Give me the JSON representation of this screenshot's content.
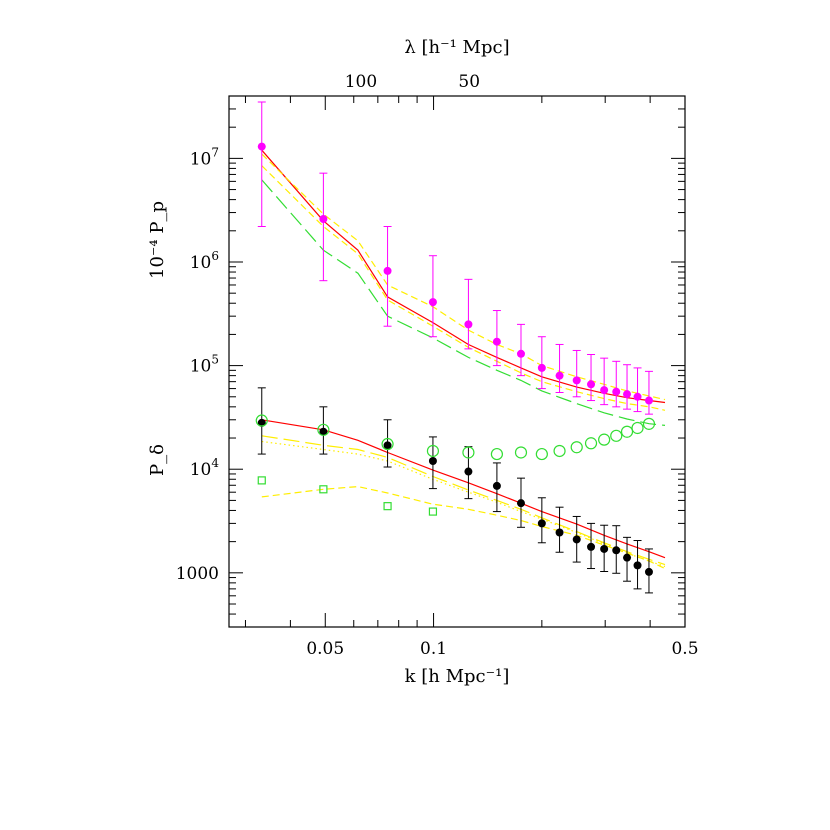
{
  "chart_data": {
    "type": "scatter",
    "x_scale": "log",
    "y_scale": "log",
    "xlim": [
      0.027,
      0.5
    ],
    "ylim": [
      300,
      40000000
    ],
    "xlabel": "k [h Mpc⁻¹]",
    "top_xlabel": "λ [h⁻¹ Mpc]",
    "ylabel_upper": "10⁻⁴ P_p",
    "ylabel_lower": "P_δ",
    "x_ticks": [
      {
        "value": 0.05,
        "label": "0.05"
      },
      {
        "value": 0.1,
        "label": "0.1"
      },
      {
        "value": 0.5,
        "label": "0.5"
      }
    ],
    "top_ticks": [
      {
        "lambda": 100,
        "label": "100"
      },
      {
        "lambda": 50,
        "label": "50"
      }
    ],
    "y_ticks": [
      {
        "value": 1000,
        "mantissa": "1000",
        "exponent": ""
      },
      {
        "value": 10000,
        "mantissa": "10",
        "exponent": "4"
      },
      {
        "value": 100000,
        "mantissa": "10",
        "exponent": "5"
      },
      {
        "value": 1000000,
        "mantissa": "10",
        "exponent": "6"
      },
      {
        "value": 10000000,
        "mantissa": "10",
        "exponent": "7"
      }
    ],
    "grid": false,
    "series": [
      {
        "kind": "points",
        "marker": "filled-circle",
        "color": "#ff00ff",
        "x": [
          0.0333,
          0.0494,
          0.0745,
          0.0996,
          0.125,
          0.15,
          0.175,
          0.2,
          0.224,
          0.25,
          0.274,
          0.298,
          0.322,
          0.345,
          0.369,
          0.397
        ],
        "y": [
          13000000,
          2600000,
          820000,
          410000,
          250000,
          170000,
          130000,
          95000,
          80000,
          72000,
          66000,
          58000,
          56000,
          53000,
          50000,
          46000
        ],
        "yerr_low": [
          2200000,
          660000,
          240000,
          190000,
          145000,
          100000,
          80000,
          60000,
          55000,
          50000,
          46000,
          42000,
          40000,
          38000,
          36000,
          34000
        ],
        "yerr_high": [
          35000000,
          7200000,
          2200000,
          1150000,
          680000,
          340000,
          250000,
          190000,
          160000,
          140000,
          128000,
          118000,
          110000,
          102000,
          95000,
          88000
        ]
      },
      {
        "kind": "points",
        "marker": "filled-circle",
        "color": "#000000",
        "x": [
          0.0333,
          0.0494,
          0.0745,
          0.0996,
          0.125,
          0.15,
          0.175,
          0.2,
          0.224,
          0.25,
          0.274,
          0.298,
          0.322,
          0.345,
          0.369,
          0.397
        ],
        "y": [
          28000,
          23000,
          17000,
          12000,
          9500,
          6900,
          4700,
          3000,
          2450,
          2100,
          1780,
          1700,
          1650,
          1400,
          1180,
          1020
        ],
        "yerr_low": [
          14000,
          14000,
          10500,
          6500,
          5200,
          3900,
          2750,
          1950,
          1580,
          1270,
          1100,
          1030,
          990,
          830,
          700,
          640
        ],
        "yerr_high": [
          61000,
          40000,
          30000,
          20500,
          16500,
          11500,
          8200,
          5300,
          4300,
          3500,
          3000,
          2880,
          2850,
          2200,
          2050,
          1700
        ]
      },
      {
        "kind": "points",
        "marker": "open-circle",
        "color": "#33dd33",
        "x": [
          0.0333,
          0.0494,
          0.0745,
          0.0996,
          0.125,
          0.15,
          0.175,
          0.2,
          0.224,
          0.25,
          0.274,
          0.298,
          0.322,
          0.345,
          0.369,
          0.397
        ],
        "y": [
          29500,
          24000,
          17500,
          15000,
          14500,
          14000,
          14500,
          14000,
          15000,
          16300,
          17800,
          19300,
          21000,
          23000,
          25000,
          27400
        ]
      },
      {
        "kind": "points",
        "marker": "open-square",
        "color": "#33dd33",
        "x": [
          0.0333,
          0.0494,
          0.0745,
          0.0996
        ],
        "y": [
          7800,
          6400,
          4400,
          3900
        ]
      },
      {
        "kind": "line",
        "style": "solid",
        "color": "#ff0000",
        "x": [
          0.0333,
          0.0494,
          0.0616,
          0.0745,
          0.0996,
          0.125,
          0.15,
          0.175,
          0.2,
          0.25,
          0.298,
          0.345,
          0.397,
          0.44
        ],
        "y": [
          12000000,
          2500000,
          1300000,
          460000,
          260000,
          160000,
          120000,
          95000,
          78000,
          62000,
          54000,
          49000,
          46000,
          44000
        ]
      },
      {
        "kind": "line",
        "style": "solid",
        "color": "#ff0000",
        "x": [
          0.0333,
          0.0494,
          0.0616,
          0.0745,
          0.0996,
          0.125,
          0.15,
          0.175,
          0.2,
          0.25,
          0.298,
          0.345,
          0.397,
          0.44
        ],
        "y": [
          30000,
          24000,
          19000,
          14500,
          9800,
          7400,
          5800,
          4700,
          3900,
          2950,
          2300,
          1900,
          1600,
          1400
        ]
      },
      {
        "kind": "line",
        "style": "dashed",
        "color": "#ffee00",
        "x": [
          0.0333,
          0.0494,
          0.0616,
          0.0745,
          0.0996,
          0.125,
          0.15,
          0.175,
          0.2,
          0.25,
          0.298,
          0.345,
          0.397,
          0.44
        ],
        "y": [
          11000000,
          2900000,
          1600000,
          600000,
          370000,
          220000,
          160000,
          130000,
          100000,
          78000,
          66000,
          57000,
          51000,
          47000
        ]
      },
      {
        "kind": "line",
        "style": "dashed",
        "color": "#ffee00",
        "x": [
          0.0333,
          0.0494,
          0.0616,
          0.0745,
          0.0996,
          0.125,
          0.15,
          0.175,
          0.2,
          0.25,
          0.298,
          0.345,
          0.397,
          0.44
        ],
        "y": [
          8500000,
          2200000,
          1200000,
          430000,
          240000,
          150000,
          110000,
          85000,
          70000,
          56000,
          48000,
          43000,
          40000,
          37000
        ]
      },
      {
        "kind": "line",
        "style": "long-dash",
        "color": "#33dd33",
        "x": [
          0.0333,
          0.0494,
          0.0616,
          0.0745,
          0.0996,
          0.125,
          0.15,
          0.175,
          0.2,
          0.25,
          0.298,
          0.345,
          0.397,
          0.44
        ],
        "y": [
          6200000,
          1300000,
          780000,
          300000,
          185000,
          120000,
          90000,
          72000,
          57000,
          43000,
          35000,
          30500,
          27500,
          26500
        ]
      },
      {
        "kind": "line",
        "style": "long-dash",
        "color": "#ffee00",
        "x": [
          0.0333,
          0.0494,
          0.0616,
          0.0745,
          0.0996,
          0.125,
          0.15,
          0.175,
          0.2,
          0.25,
          0.298,
          0.345,
          0.397,
          0.44
        ],
        "y": [
          21000,
          17000,
          15500,
          13000,
          8500,
          6300,
          5000,
          4100,
          3400,
          2500,
          1950,
          1600,
          1350,
          1200
        ]
      },
      {
        "kind": "line",
        "style": "dotted",
        "color": "#ffee00",
        "x": [
          0.0333,
          0.0494,
          0.0616,
          0.0745,
          0.0996,
          0.125,
          0.15,
          0.175,
          0.2,
          0.25,
          0.298,
          0.345,
          0.397,
          0.44
        ],
        "y": [
          18500,
          15500,
          14000,
          12000,
          8000,
          6000,
          4800,
          3900,
          3300,
          2450,
          1900,
          1550,
          1300,
          1150
        ]
      },
      {
        "kind": "line",
        "style": "dashed",
        "color": "#ffee00",
        "x": [
          0.0333,
          0.0494,
          0.0616,
          0.0745,
          0.0996,
          0.125,
          0.15,
          0.175,
          0.2,
          0.25,
          0.298,
          0.345,
          0.397,
          0.44
        ],
        "y": [
          5400,
          6400,
          6800,
          5900,
          4600,
          4100,
          3600,
          3200,
          2800,
          2300,
          1850,
          1550,
          1300,
          1100
        ]
      }
    ]
  }
}
